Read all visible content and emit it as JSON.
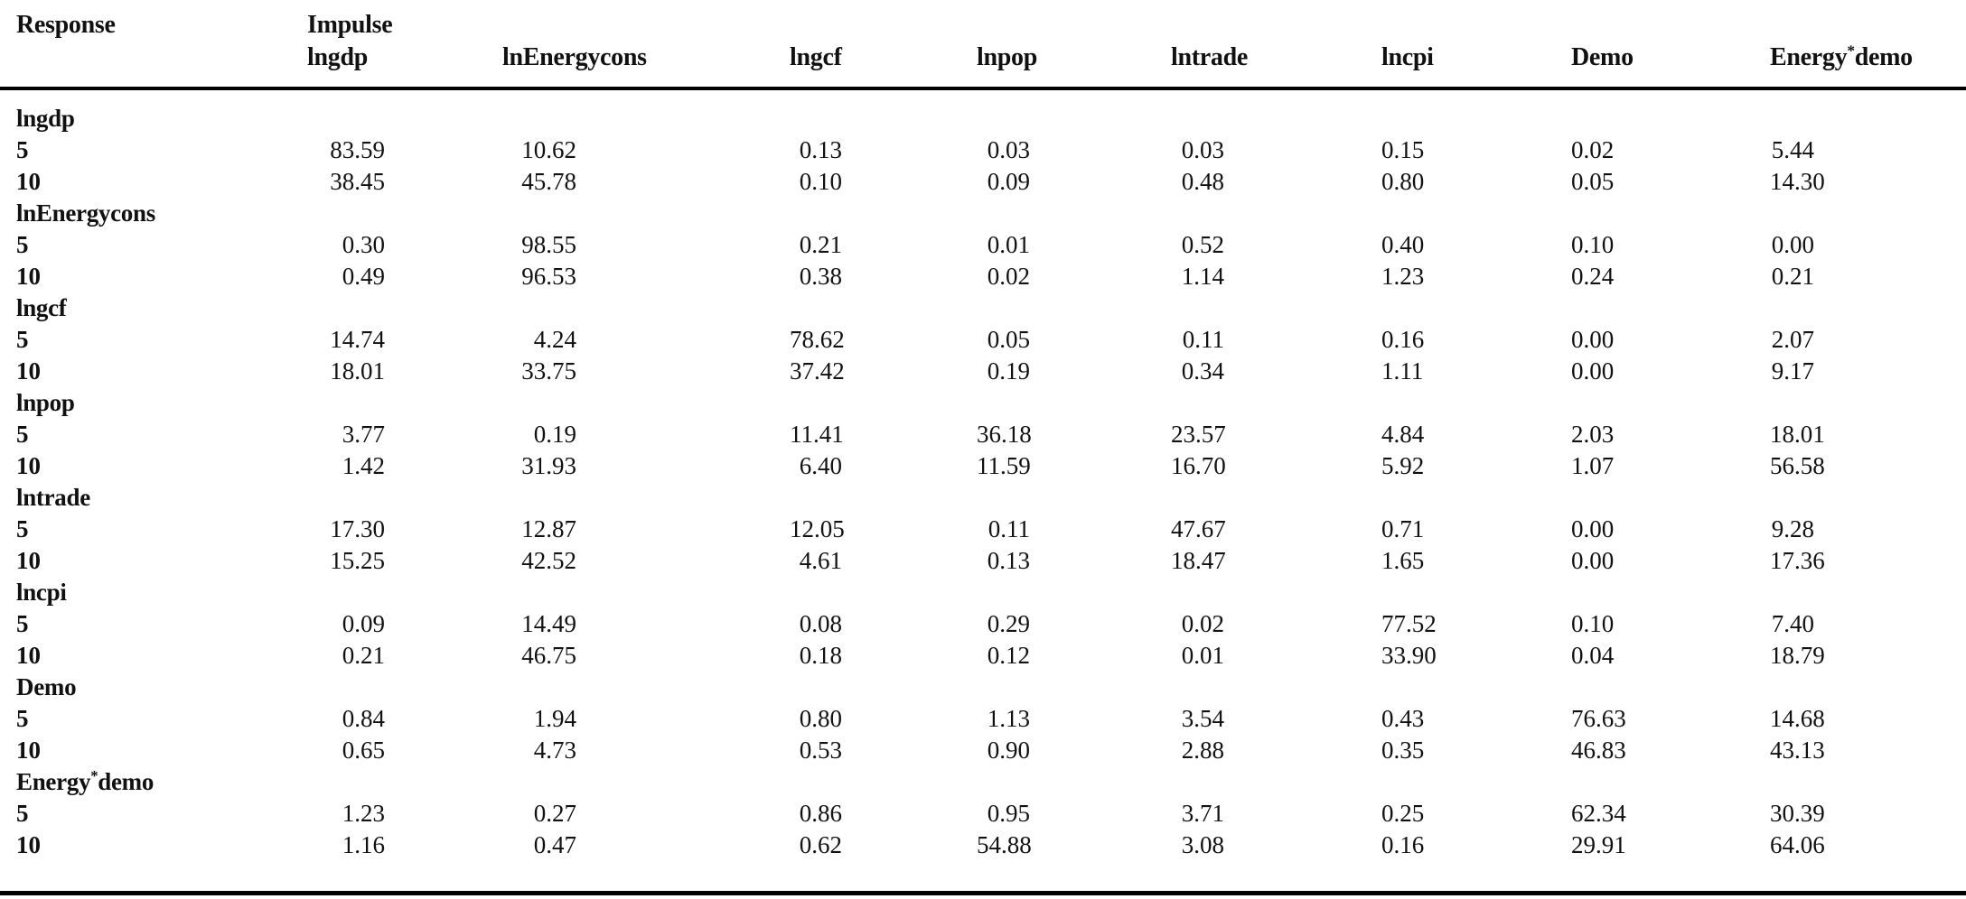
{
  "colors": {
    "text": "#111111",
    "rule": "#000000",
    "background": "#ffffff"
  },
  "table": {
    "response_header": "Response",
    "impulse_header": "Impulse",
    "impulse_columns": [
      "lngdp",
      "lnEnergycons",
      "lngcf",
      "lnpop",
      "lntrade",
      "lncpi",
      "Demo",
      "Energy*demo"
    ],
    "groups": [
      {
        "response": "lngdp",
        "rows": [
          {
            "horizon": "5",
            "values": [
              "83.59",
              "10.62",
              "0.13",
              "0.03",
              "0.03",
              "0.15",
              "0.02",
              "5.44"
            ]
          },
          {
            "horizon": "10",
            "values": [
              "38.45",
              "45.78",
              "0.10",
              "0.09",
              "0.48",
              "0.80",
              "0.05",
              "14.30"
            ]
          }
        ]
      },
      {
        "response": "lnEnergycons",
        "rows": [
          {
            "horizon": "5",
            "values": [
              "0.30",
              "98.55",
              "0.21",
              "0.01",
              "0.52",
              "0.40",
              "0.10",
              "0.00"
            ]
          },
          {
            "horizon": "10",
            "values": [
              "0.49",
              "96.53",
              "0.38",
              "0.02",
              "1.14",
              "1.23",
              "0.24",
              "0.21"
            ]
          }
        ]
      },
      {
        "response": "lngcf",
        "rows": [
          {
            "horizon": "5",
            "values": [
              "14.74",
              "4.24",
              "78.62",
              "0.05",
              "0.11",
              "0.16",
              "0.00",
              "2.07"
            ]
          },
          {
            "horizon": "10",
            "values": [
              "18.01",
              "33.75",
              "37.42",
              "0.19",
              "0.34",
              "1.11",
              "0.00",
              "9.17"
            ]
          }
        ]
      },
      {
        "response": "lnpop",
        "rows": [
          {
            "horizon": "5",
            "values": [
              "3.77",
              "0.19",
              "11.41",
              "36.18",
              "23.57",
              "4.84",
              "2.03",
              "18.01"
            ]
          },
          {
            "horizon": "10",
            "values": [
              "1.42",
              "31.93",
              "6.40",
              "11.59",
              "16.70",
              "5.92",
              "1.07",
              "56.58"
            ]
          }
        ]
      },
      {
        "response": "lntrade",
        "rows": [
          {
            "horizon": "5",
            "values": [
              "17.30",
              "12.87",
              "12.05",
              "0.11",
              "47.67",
              "0.71",
              "0.00",
              "9.28"
            ]
          },
          {
            "horizon": "10",
            "values": [
              "15.25",
              "42.52",
              "4.61",
              "0.13",
              "18.47",
              "1.65",
              "0.00",
              "17.36"
            ]
          }
        ]
      },
      {
        "response": "lncpi",
        "rows": [
          {
            "horizon": "5",
            "values": [
              "0.09",
              "14.49",
              "0.08",
              "0.29",
              "0.02",
              "77.52",
              "0.10",
              "7.40"
            ]
          },
          {
            "horizon": "10",
            "values": [
              "0.21",
              "46.75",
              "0.18",
              "0.12",
              "0.01",
              "33.90",
              "0.04",
              "18.79"
            ]
          }
        ]
      },
      {
        "response": "Demo",
        "rows": [
          {
            "horizon": "5",
            "values": [
              "0.84",
              "1.94",
              "0.80",
              "1.13",
              "3.54",
              "0.43",
              "76.63",
              "14.68"
            ]
          },
          {
            "horizon": "10",
            "values": [
              "0.65",
              "4.73",
              "0.53",
              "0.90",
              "2.88",
              "0.35",
              "46.83",
              "43.13"
            ]
          }
        ]
      },
      {
        "response": "Energy*demo",
        "rows": [
          {
            "horizon": "5",
            "values": [
              "1.23",
              "0.27",
              "0.86",
              "0.95",
              "3.71",
              "0.25",
              "62.34",
              "30.39"
            ]
          },
          {
            "horizon": "10",
            "values": [
              "1.16",
              "0.47",
              "0.62",
              "54.88",
              "3.08",
              "0.16",
              "29.91",
              "64.06"
            ]
          }
        ]
      }
    ]
  }
}
